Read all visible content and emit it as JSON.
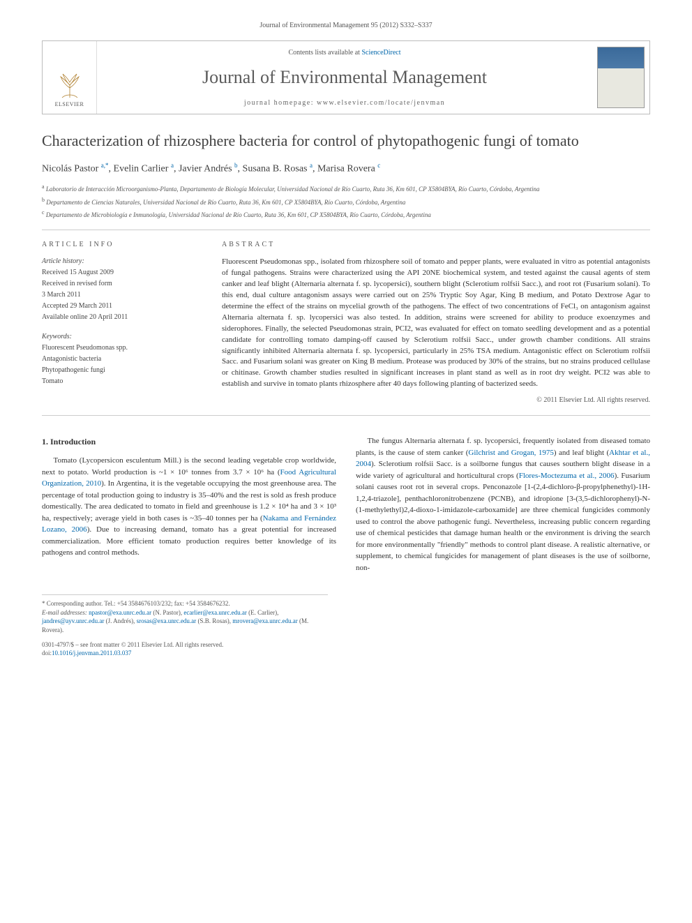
{
  "journal_ref": "Journal of Environmental Management 95 (2012) S332–S337",
  "header": {
    "contents_prefix": "Contents lists available at ",
    "contents_link": "ScienceDirect",
    "journal_name": "Journal of Environmental Management",
    "homepage_prefix": "journal homepage: ",
    "homepage_url": "www.elsevier.com/locate/jenvman",
    "publisher_label": "ELSEVIER",
    "cover_thumb_colors": {
      "top": "#3a6a9a",
      "bottom": "#e8e8e0"
    }
  },
  "title": "Characterization of rhizosphere bacteria for control of phytopathogenic fungi of tomato",
  "authors_html": "Nicolás Pastor <sup>a,*</sup>, Evelin Carlier <sup>a</sup>, Javier Andrés <sup>b</sup>, Susana B. Rosas <sup>a</sup>, Marisa Rovera <sup>c</sup>",
  "affiliations": [
    {
      "sup": "a",
      "text": "Laboratorio de Interacción Microorganismo-Planta, Departamento de Biología Molecular, Universidad Nacional de Río Cuarto, Ruta 36, Km 601, CP X5804BYA, Río Cuarto, Córdoba, Argentina"
    },
    {
      "sup": "b",
      "text": "Departamento de Ciencias Naturales, Universidad Nacional de Río Cuarto, Ruta 36, Km 601, CP X5804BYA, Río Cuarto, Córdoba, Argentina"
    },
    {
      "sup": "c",
      "text": "Departamento de Microbiología e Inmunología, Universidad Nacional de Río Cuarto, Ruta 36, Km 601, CP X5804BYA, Río Cuarto, Córdoba, Argentina"
    }
  ],
  "article_info": {
    "heading": "ARTICLE INFO",
    "history_label": "Article history:",
    "history": [
      "Received 15 August 2009",
      "Received in revised form",
      "3 March 2011",
      "Accepted 29 March 2011",
      "Available online 20 April 2011"
    ],
    "keywords_label": "Keywords:",
    "keywords": [
      "Fluorescent Pseudomonas spp.",
      "Antagonistic bacteria",
      "Phytopathogenic fungi",
      "Tomato"
    ]
  },
  "abstract": {
    "heading": "ABSTRACT",
    "text": "Fluorescent Pseudomonas spp., isolated from rhizosphere soil of tomato and pepper plants, were evaluated in vitro as potential antagonists of fungal pathogens. Strains were characterized using the API 20NE biochemical system, and tested against the causal agents of stem canker and leaf blight (Alternaria alternata f. sp. lycopersici), southern blight (Sclerotium rolfsii Sacc.), and root rot (Fusarium solani). To this end, dual culture antagonism assays were carried out on 25% Tryptic Soy Agar, King B medium, and Potato Dextrose Agar to determine the effect of the strains on mycelial growth of the pathogens. The effect of two concentrations of FeCl₃ on antagonism against Alternaria alternata f. sp. lycopersici was also tested. In addition, strains were screened for ability to produce exoenzymes and siderophores. Finally, the selected Pseudomonas strain, PCI2, was evaluated for effect on tomato seedling development and as a potential candidate for controlling tomato damping-off caused by Sclerotium rolfsii Sacc., under growth chamber conditions. All strains significantly inhibited Alternaria alternata f. sp. lycopersici, particularly in 25% TSA medium. Antagonistic effect on Sclerotium rolfsii Sacc. and Fusarium solani was greater on King B medium. Protease was produced by 30% of the strains, but no strains produced cellulase or chitinase. Growth chamber studies resulted in significant increases in plant stand as well as in root dry weight. PCI2 was able to establish and survive in tomato plants rhizosphere after 40 days following planting of bacterized seeds.",
    "copyright": "© 2011 Elsevier Ltd. All rights reserved."
  },
  "body": {
    "section_heading": "1. Introduction",
    "para1": "Tomato (Lycopersicon esculentum Mill.) is the second leading vegetable crop worldwide, next to potato. World production is ~1 × 10⁶ tonnes from 3.7 × 10⁶ ha (Food Agricultural Organization, 2010). In Argentina, it is the vegetable occupying the most greenhouse area. The percentage of total production going to industry is 35–40% and the rest is sold as fresh produce domestically. The area dedicated to tomato in field and greenhouse is 1.2 × 10⁴ ha and 3 × 10³ ha, respectively; average yield in both cases is ~35–40 tonnes per ha (Nakama and Fernández Lozano, 2006). Due to increasing demand, tomato has a great potential for increased commercialization. More efficient tomato production requires better knowledge of its pathogens and control methods.",
    "para2": "The fungus Alternaria alternata f. sp. lycopersici, frequently isolated from diseased tomato plants, is the cause of stem canker (Gilchrist and Grogan, 1975) and leaf blight (Akhtar et al., 2004). Sclerotium rolfsii Sacc. is a soilborne fungus that causes southern blight disease in a wide variety of agricultural and horticultural crops (Flores-Moctezuma et al., 2006). Fusarium solani causes root rot in several crops. Penconazole [1-(2,4-dichloro-β-propylphenethyl)-1H-1,2,4-triazole], penthachloronitrobenzene (PCNB), and idropione [3-(3,5-dichlorophenyl)-N-(1-methylethyl)2,4-dioxo-1-imidazole-carboxamide] are three chemical fungicides commonly used to control the above pathogenic fungi. Nevertheless, increasing public concern regarding use of chemical pesticides that damage human health or the environment is driving the search for more environmentally \"friendly\" methods to control plant disease. A realistic alternative, or supplement, to chemical fungicides for management of plant diseases is the use of soilborne, non-",
    "refs": {
      "fao": "Food Agricultural Organization, 2010",
      "nakama": "Nakama and Fernández Lozano, 2006",
      "gilchrist": "Gilchrist and Grogan, 1975",
      "akhtar": "Akhtar et al., 2004",
      "flores": "Flores-Moctezuma et al., 2006"
    }
  },
  "footnotes": {
    "corresponding": "* Corresponding author. Tel.: +54 3584676103/232; fax: +54 3584676232.",
    "emails_label": "E-mail addresses:",
    "emails": [
      {
        "addr": "npastor@exa.unrc.edu.ar",
        "who": "(N. Pastor)"
      },
      {
        "addr": "ecarlier@exa.unrc.edu.ar",
        "who": "(E. Carlier)"
      },
      {
        "addr": "jandres@ayv.unrc.edu.ar",
        "who": "(J. Andrés)"
      },
      {
        "addr": "srosas@exa.unrc.edu.ar",
        "who": "(S.B. Rosas)"
      },
      {
        "addr": "mrovera@exa.unrc.edu.ar",
        "who": "(M. Rovera)"
      }
    ]
  },
  "footer": {
    "front_matter": "0301-4797/$ – see front matter © 2011 Elsevier Ltd. All rights reserved.",
    "doi_label": "doi:",
    "doi": "10.1016/j.jenvman.2011.03.037"
  },
  "colors": {
    "link": "#0066aa",
    "text": "#333333",
    "muted": "#555555",
    "rule": "#cccccc"
  }
}
